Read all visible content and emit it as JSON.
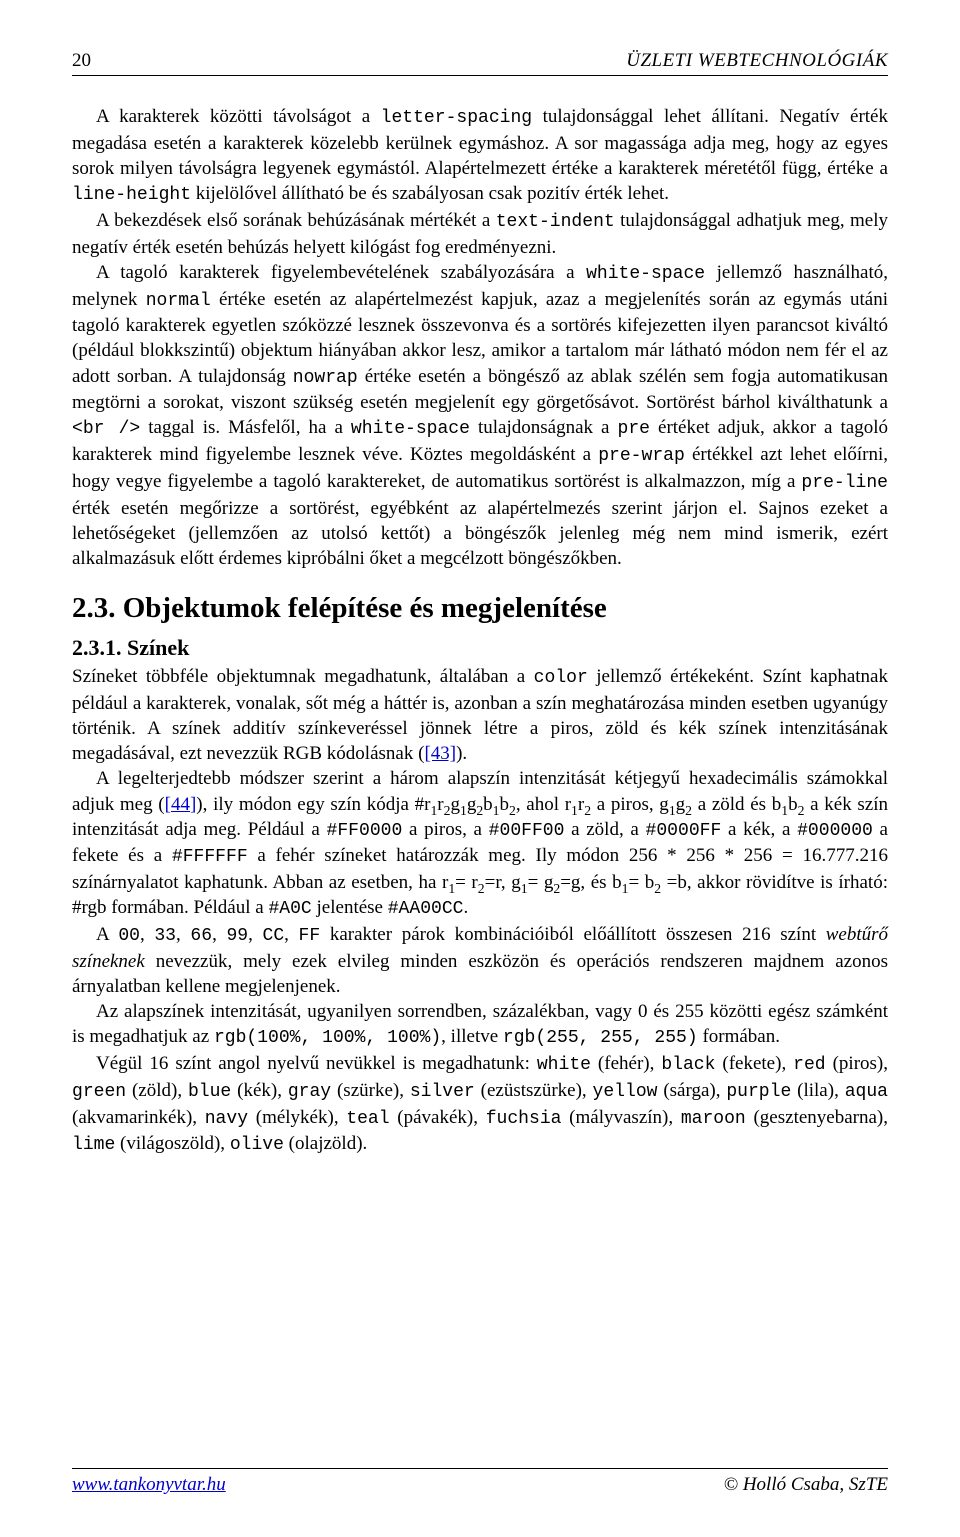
{
  "header": {
    "page_number": "20",
    "title": "ÜZLETI WEBTECHNOLÓGIÁK"
  },
  "p1": {
    "t1": "A karakterek közötti távolságot a ",
    "c1": "letter-spacing",
    "t2": " tulajdonsággal lehet állítani. Negatív érték megadása esetén a karakterek közelebb kerülnek egymáshoz. A sor magassága adja meg, hogy az egyes sorok milyen távolságra legyenek egymástól. Alapértelmezett értéke a karakterek méretétől függ, értéke a ",
    "c2": "line-height",
    "t3": " kijelölővel állítható be és szabályosan csak pozitív érték lehet."
  },
  "p2": {
    "t1": "A bekezdések első sorának behúzásának mértékét a ",
    "c1": "text-indent",
    "t2": " tulajdonsággal adhatjuk meg, mely negatív érték esetén behúzás helyett kilógást fog eredményezni."
  },
  "p3": {
    "t1": "A tagoló karakterek figyelembevételének szabályozására a ",
    "c1": "white-space",
    "t2": " jellemző használható, melynek ",
    "c2": "normal",
    "t3": " értéke esetén az alapértelmezést kapjuk, azaz a megjelenítés során az egymás utáni tagoló karakterek egyetlen szóközzé lesznek összevonva és a sortörés kifejezetten ilyen parancsot kiváltó (például blokkszintű) objektum hiányában akkor lesz, amikor a tartalom már látható módon nem fér el az adott sorban. A tulajdonság ",
    "c3": "nowrap",
    "t4": " értéke esetén a böngésző az ablak szélén sem fogja automatikusan megtörni a sorokat, viszont szükség esetén megjelenít egy görgetősávot. Sortörést bárhol kiválthatunk a ",
    "c4": "<br />",
    "t5": " taggal is. Másfelől, ha a ",
    "c5": "white-space",
    "t6": " tulajdonságnak a ",
    "c6": "pre",
    "t7": " értéket adjuk, akkor a tagoló karakterek mind figyelembe lesznek véve. Köztes megoldásként a ",
    "c7": "pre-wrap",
    "t8": " értékkel azt lehet előírni, hogy vegye figyelembe a tagoló karaktereket, de automatikus sortörést is alkalmazzon, míg a ",
    "c8": "pre-line",
    "t9": " érték esetén megőrizze a sortörést, egyébként az alapértelmezés szerint járjon el. Sajnos ezeket a lehetőségeket (jellemzően az utolsó kettőt) a böngészők jelenleg még nem mind ismerik, ezért alkalmazásuk előtt érdemes kipróbálni őket a megcélzott böngészőkben."
  },
  "section": {
    "num": "2.3.",
    "title": "Objektumok felépítése és megjelenítése"
  },
  "subsection": {
    "num": "2.3.1.",
    "title": "Színek"
  },
  "p4": {
    "t1": "Színeket többféle objektumnak megadhatunk, általában a ",
    "c1": "color",
    "t2": " jellemző értékeként. Színt kaphatnak például a karakterek, vonalak, sőt még a háttér is, azonban a szín meghatározása minden esetben ugyanúgy történik. A színek additív színkeveréssel jönnek létre a piros, zöld és kék színek intenzitásának megadásával, ezt nevezzük RGB kódolásnak (",
    "r1": "[43]",
    "t3": ")."
  },
  "p5": {
    "t1": "A legelterjedtebb módszer szerint a három alapszín intenzitását kétjegyű hexadecimális számokkal adjuk meg (",
    "r1": "[44]",
    "t2": "), ily módon egy szín kódja #r",
    "s1": "1",
    "t2b": "r",
    "s2": "2",
    "t2c": "g",
    "s3": "1",
    "t2d": "g",
    "s4": "2",
    "t2e": "b",
    "s5": "1",
    "t2f": "b",
    "s6": "2",
    "t3": ", ahol r",
    "s7": "1",
    "t3b": "r",
    "s8": "2",
    "t4": " a piros, g",
    "s9": "1",
    "t4b": "g",
    "s10": "2",
    "t5": " a zöld és b",
    "s11": "1",
    "t5b": "b",
    "s12": "2",
    "t6": " a kék szín intenzitását adja meg. Például a ",
    "c1": "#FF0000",
    "t7": " a piros, a ",
    "c2": "#00FF00",
    "t8": " a zöld, a ",
    "c3": "#0000FF",
    "t9": " a kék, a ",
    "c4": "#000000",
    "t10": " a fekete és a ",
    "c5": "#FFFFFF",
    "t11": " a fehér színeket határozzák meg. Ily módon 256 * 256 * 256 = 16.777.216 színárnyalatot kaphatunk. Abban az esetben, ha r",
    "s13": "1",
    "t11b": "= r",
    "s14": "2",
    "t11c": "=r, g",
    "s15": "1",
    "t11d": "= g",
    "s16": "2",
    "t11e": "=g, és b",
    "s17": "1",
    "t11f": "= b",
    "s18": "2",
    "t12": " =b, akkor rövidítve is írható: #rgb formában. Például a ",
    "c6": "#A0C",
    "t13": " jelentése ",
    "c7": "#AA00CC",
    "t14": "."
  },
  "p6": {
    "t1": "A ",
    "c1": "00",
    "t2": ", ",
    "c2": "33",
    "t3": ", ",
    "c3": "66",
    "t4": ", ",
    "c4": "99",
    "t5": ", ",
    "c5": "CC",
    "t6": ", ",
    "c6": "FF",
    "t7": " karakter párok kombinációiból előállított összesen 216 színt ",
    "i1": "webtűrő színeknek",
    "t8": " nevezzük, mely ezek elvileg minden eszközön és operációs rendszeren majdnem azonos árnyalatban kellene megjelenjenek."
  },
  "p7": {
    "t1": "Az alapszínek intenzitását, ugyanilyen sorrendben, százalékban, vagy 0 és 255 közötti egész számként is megadhatjuk az ",
    "c1": "rgb(100%, 100%, 100%)",
    "t2": ", illetve ",
    "c2": "rgb(255, 255, 255)",
    "t3": " formában."
  },
  "p8": {
    "t1": "Végül 16 színt angol nyelvű nevükkel is megadhatunk: ",
    "c1": "white",
    "t1b": " (fehér), ",
    "c2": "black",
    "t2": " (fekete), ",
    "c3": "red",
    "t3": " (piros), ",
    "c4": "green",
    "t4": " (zöld), ",
    "c5": "blue",
    "t5": " (kék), ",
    "c6": "gray",
    "t6": " (szürke), ",
    "c7": "silver",
    "t7": " (ezüstszürke), ",
    "c8": "yellow",
    "t8": " (sárga), ",
    "c9": "purple",
    "t9": " (lila), ",
    "c10": "aqua",
    "t10": " (akvamarinkék), ",
    "c11": "navy",
    "t11": " (mélykék), ",
    "c12": "teal",
    "t12": " (pávakék), ",
    "c13": "fuchsia",
    "t13": " (mályvaszín), ",
    "c14": "maroon",
    "t14": " (gesztenyebarna), ",
    "c15": "lime",
    "t15": " (világoszöld), ",
    "c16": "olive",
    "t16": " (olajzöld)."
  },
  "footer": {
    "url": "www.tankonyvtar.hu",
    "copyright": "© Holló Csaba, SzTE"
  }
}
